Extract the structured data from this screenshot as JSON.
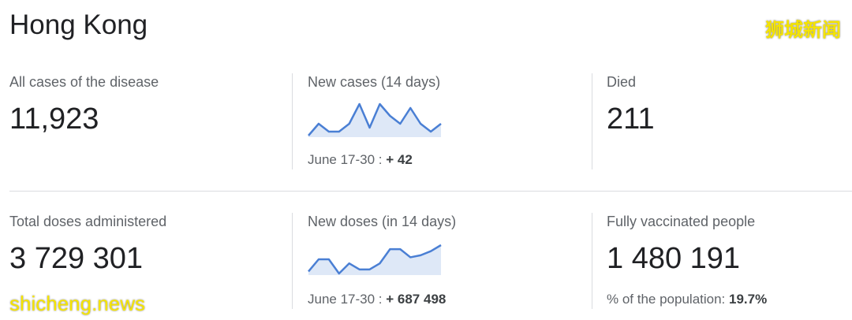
{
  "header": {
    "title": "Hong Kong",
    "watermark_top": "狮城新闻",
    "watermark_bottom": "shicheng.news"
  },
  "cards": [
    {
      "label": "All cases of the disease",
      "value": "11,923"
    },
    {
      "label": "New cases (14 days)",
      "period": "June 17-30 :",
      "change": "+ 42",
      "sparkline": {
        "type": "line",
        "color": "#4a7fd4",
        "values": [
          1,
          4,
          2,
          2,
          4,
          9,
          3,
          9,
          6,
          4,
          8,
          4,
          2,
          4
        ]
      }
    },
    {
      "label": "Died",
      "value": "211"
    },
    {
      "label": "Total doses administered",
      "value": "3 729 301"
    },
    {
      "label": "New doses (in 14 days)",
      "period": "June 17-30 :",
      "change": "+ 687 498",
      "sparkline": {
        "type": "line",
        "color": "#4a7fd4",
        "values": [
          8,
          14,
          14,
          7,
          12,
          9,
          9,
          12,
          19,
          19,
          15,
          16,
          18,
          21
        ]
      }
    },
    {
      "label": "Fully vaccinated people",
      "value": "1 480 191",
      "note": "% of the population:",
      "note_value": "19.7%"
    }
  ]
}
